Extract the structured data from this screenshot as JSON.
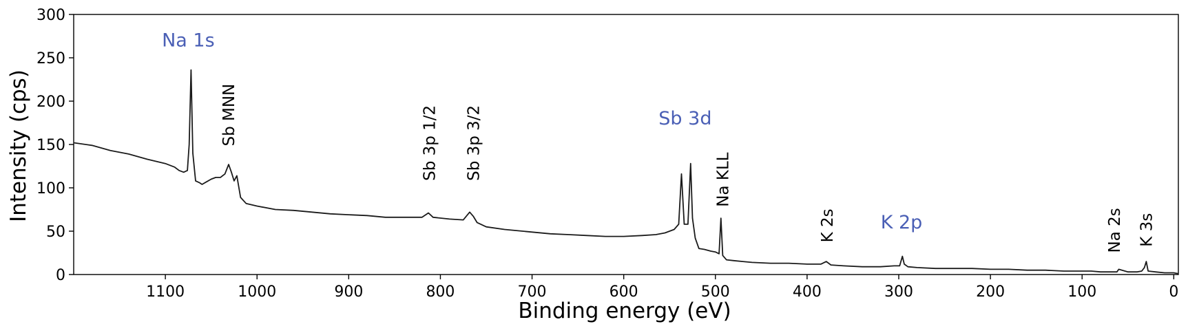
{
  "chart_data": {
    "type": "line",
    "title": "",
    "xlabel": "Binding energy (eV)",
    "ylabel": "Intensity (cps)",
    "xlim": [
      1200,
      -5
    ],
    "ylim": [
      0,
      300
    ],
    "x_reversed": true,
    "grid": false,
    "line_color": "#1a1a1a",
    "xticks": [
      1100,
      1000,
      900,
      800,
      700,
      600,
      500,
      400,
      300,
      200,
      100,
      0
    ],
    "yticks": [
      0,
      50,
      100,
      150,
      200,
      250,
      300
    ],
    "series": [
      {
        "x": [
          1200,
          1180,
          1160,
          1140,
          1120,
          1100,
          1090,
          1085,
          1080,
          1076,
          1074,
          1072,
          1070,
          1067,
          1063,
          1060,
          1055,
          1050,
          1045,
          1040,
          1035,
          1031,
          1028,
          1025,
          1022,
          1018,
          1012,
          1000,
          980,
          960,
          940,
          920,
          900,
          880,
          860,
          840,
          820,
          813,
          808,
          790,
          775,
          768,
          764,
          760,
          750,
          730,
          700,
          680,
          660,
          640,
          620,
          600,
          580,
          565,
          555,
          545,
          540,
          537,
          534,
          530,
          527,
          525,
          522,
          518,
          512,
          505,
          500,
          496,
          494,
          492,
          488,
          480,
          470,
          460,
          440,
          420,
          400,
          385,
          379,
          374,
          360,
          340,
          320,
          305,
          299,
          296,
          294,
          290,
          280,
          260,
          240,
          220,
          200,
          180,
          160,
          140,
          120,
          100,
          90,
          80,
          70,
          62,
          60,
          50,
          40,
          35,
          32,
          30,
          28,
          20,
          10,
          0,
          -5
        ],
        "y": [
          152,
          149,
          143,
          139,
          133,
          128,
          124,
          120,
          118,
          120,
          150,
          236,
          140,
          108,
          106,
          104,
          107,
          110,
          112,
          112,
          116,
          127,
          118,
          108,
          114,
          89,
          82,
          79,
          75,
          74,
          72,
          70,
          69,
          68,
          66,
          66,
          66,
          71,
          66,
          64,
          63,
          72,
          67,
          60,
          55,
          52,
          49,
          47,
          46,
          45,
          44,
          44,
          45,
          46,
          48,
          52,
          58,
          116,
          58,
          58,
          128,
          65,
          42,
          30,
          29,
          27,
          26,
          24,
          65,
          22,
          17,
          16,
          15,
          14,
          13,
          13,
          12,
          12,
          15,
          11,
          10,
          9,
          9,
          10,
          10,
          21,
          12,
          9,
          8,
          7,
          7,
          7,
          6,
          6,
          5,
          5,
          4,
          4,
          4,
          3,
          3,
          3,
          6,
          3,
          3,
          4,
          8,
          15,
          4,
          3,
          2,
          2,
          1
        ]
      }
    ],
    "annotations": [
      {
        "text": "Na 1s",
        "x": 1075,
        "y": 263,
        "style": "blue",
        "rotation": 0
      },
      {
        "text": "Sb MNN",
        "x": 1031,
        "y": 148,
        "style": "black",
        "rotation": 90
      },
      {
        "text": "Sb 3p 1/2",
        "x": 812,
        "y": 108,
        "style": "black",
        "rotation": 90
      },
      {
        "text": "Sb 3p 3/2",
        "x": 764,
        "y": 108,
        "style": "black",
        "rotation": 90
      },
      {
        "text": "Sb 3d",
        "x": 533,
        "y": 173,
        "style": "blue",
        "rotation": 0
      },
      {
        "text": "Na KLL",
        "x": 492,
        "y": 78,
        "style": "black",
        "rotation": 90
      },
      {
        "text": "K 2s",
        "x": 378,
        "y": 37,
        "style": "black",
        "rotation": 90
      },
      {
        "text": "K 2p",
        "x": 297,
        "y": 53,
        "style": "blue",
        "rotation": 0
      },
      {
        "text": "Na 2s",
        "x": 65,
        "y": 25,
        "style": "black",
        "rotation": 90
      },
      {
        "text": "K 3s",
        "x": 30,
        "y": 32,
        "style": "black",
        "rotation": 90
      }
    ]
  }
}
